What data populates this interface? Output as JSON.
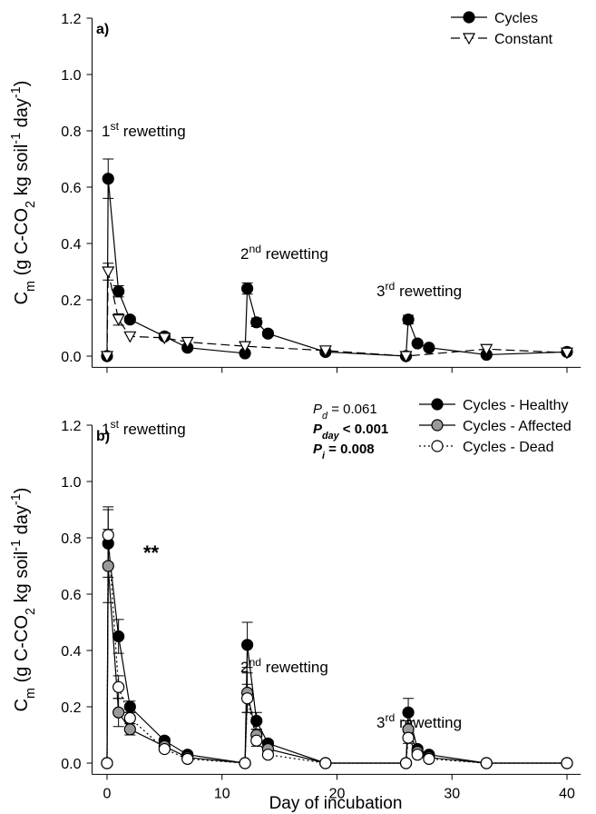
{
  "chart_data": [
    {
      "type": "line",
      "panel_label": "a)",
      "ylabel": [
        {
          "text": "C"
        },
        {
          "text": "m",
          "sub": true
        },
        {
          "text": " (g C-CO"
        },
        {
          "text": "2",
          "sub": true
        },
        {
          "text": " kg soil"
        },
        {
          "text": "-1",
          "sup": true
        },
        {
          "text": " day"
        },
        {
          "text": "-1",
          "sup": true
        },
        {
          "text": ")"
        }
      ],
      "xlim": [
        -1.3,
        41.2
      ],
      "xticks": [
        0,
        10,
        20,
        30,
        40
      ],
      "xtick_labels": false,
      "ylim": [
        -0.04,
        1.2
      ],
      "yticks": [
        {
          "value": 0.0,
          "label": "0.0"
        },
        0.2,
        0.4,
        0.6,
        0.8,
        {
          "value": 1.0,
          "label": "1.0"
        },
        1.2
      ],
      "legend": "upper right",
      "annotations": [
        [
          {
            "text": "1"
          },
          {
            "text": "st",
            "sup": true
          },
          {
            "text": " rewetting"
          }
        ],
        [
          {
            "text": "2"
          },
          {
            "text": "nd",
            "sup": true
          },
          {
            "text": " rewetting"
          }
        ],
        [
          {
            "text": "3"
          },
          {
            "text": "rd",
            "sup": true
          },
          {
            "text": " rewetting"
          }
        ]
      ],
      "series": [
        {
          "name": "Cycles",
          "color": "#000000",
          "marker": "circle",
          "marker_fill": "#000000",
          "line": "solid",
          "x": [
            0,
            0.1,
            1,
            2,
            5,
            7,
            12,
            12.2,
            13,
            14,
            19,
            26,
            26.2,
            27,
            28,
            33,
            40
          ],
          "values": [
            0,
            0.63,
            0.23,
            0.13,
            0.07,
            0.03,
            0.01,
            0.24,
            0.12,
            0.08,
            0.015,
            0.0,
            0.13,
            0.045,
            0.03,
            0.005,
            0.015
          ],
          "errors": [
            null,
            0.07,
            0.02,
            0.01,
            0.01,
            null,
            null,
            0.02,
            0.015,
            0.01,
            null,
            null,
            0.015,
            null,
            null,
            null,
            null
          ]
        },
        {
          "name": "Constant",
          "color": "#000000",
          "marker": "triangle-down",
          "marker_fill": "#ffffff",
          "line": "dashed",
          "x": [
            0,
            0.1,
            1,
            2,
            5,
            7,
            12,
            19,
            26,
            33,
            40
          ],
          "values": [
            0,
            0.3,
            0.13,
            0.07,
            0.065,
            0.05,
            0.035,
            0.02,
            0.0,
            0.025,
            0.012
          ],
          "errors": [
            null,
            0.03,
            0.02,
            null,
            null,
            null,
            null,
            null,
            null,
            null,
            null
          ]
        }
      ]
    },
    {
      "type": "line",
      "panel_label": "b)",
      "ylabel": [
        {
          "text": "C"
        },
        {
          "text": "m",
          "sub": true
        },
        {
          "text": " (g C-CO"
        },
        {
          "text": "2",
          "sub": true
        },
        {
          "text": " kg soil"
        },
        {
          "text": "-1",
          "sup": true
        },
        {
          "text": " day"
        },
        {
          "text": "-1",
          "sup": true
        },
        {
          "text": ")"
        }
      ],
      "xlabel": "Day of incubation",
      "xlim": [
        -1.3,
        41.2
      ],
      "xticks": [
        0,
        10,
        20,
        30,
        40
      ],
      "xtick_labels": true,
      "ylim": [
        -0.04,
        1.2
      ],
      "yticks": [
        {
          "value": 0.0,
          "label": "0.0"
        },
        0.2,
        0.4,
        0.6,
        0.8,
        {
          "value": 1.0,
          "label": "1.0"
        },
        1.2
      ],
      "legend": "upper right",
      "annotations": [
        [
          {
            "text": "1"
          },
          {
            "text": "st",
            "sup": true
          },
          {
            "text": " rewetting"
          }
        ],
        [
          {
            "text": "2"
          },
          {
            "text": "nd",
            "sup": true
          },
          {
            "text": " rewetting"
          }
        ],
        [
          {
            "text": "3"
          },
          {
            "text": "rd",
            "sup": true
          },
          {
            "text": " rewetting"
          }
        ],
        [
          {
            "text": "**",
            "bold": true
          }
        ]
      ],
      "stats": [
        [
          {
            "text": "P",
            "italic": true
          },
          {
            "text": "d",
            "sub": true,
            "italic": true
          },
          {
            "text": " = 0.061"
          }
        ],
        [
          {
            "text": "P",
            "italic": true,
            "bold": true
          },
          {
            "text": "day",
            "sub": true,
            "italic": true,
            "bold": true
          },
          {
            "text": " < 0.001",
            "bold": true
          }
        ],
        [
          {
            "text": "P",
            "italic": true,
            "bold": true
          },
          {
            "text": "i",
            "sub": true,
            "italic": true,
            "bold": true
          },
          {
            "text": " = 0.008",
            "bold": true
          }
        ]
      ],
      "series": [
        {
          "name": "Cycles - Healthy",
          "color": "#000000",
          "marker": "circle",
          "marker_fill": "#000000",
          "line": "solid",
          "x": [
            0,
            0.1,
            1,
            2,
            5,
            7,
            12,
            12.2,
            13,
            14,
            19,
            26,
            26.2,
            27,
            28,
            33,
            40
          ],
          "values": [
            0,
            0.78,
            0.45,
            0.2,
            0.08,
            0.03,
            0,
            0.42,
            0.15,
            0.07,
            0,
            0,
            0.18,
            0.05,
            0.03,
            0,
            0
          ],
          "errors": [
            null,
            0.12,
            0.06,
            0.02,
            0.01,
            null,
            null,
            0.08,
            0.03,
            0.01,
            null,
            null,
            0.05,
            0.01,
            null,
            null,
            null
          ]
        },
        {
          "name": "Cycles - Affected",
          "color": "#000000",
          "marker": "circle",
          "marker_fill": "#999999",
          "line": "solid",
          "x": [
            0,
            0.1,
            1,
            2,
            5,
            7,
            12,
            12.2,
            13,
            14,
            19,
            26,
            26.2,
            27,
            28,
            33,
            40
          ],
          "values": [
            0,
            0.7,
            0.18,
            0.12,
            0.06,
            0.02,
            0,
            0.25,
            0.1,
            0.05,
            0,
            0,
            0.12,
            0.04,
            0.02,
            0,
            0
          ],
          "errors": [
            null,
            0.13,
            0.05,
            0.02,
            0.01,
            null,
            null,
            0.07,
            0.02,
            0.01,
            null,
            null,
            0.03,
            null,
            null,
            null,
            null
          ]
        },
        {
          "name": "Cycles - Dead",
          "color": "#000000",
          "marker": "circle",
          "marker_fill": "#ffffff",
          "line": "dotted",
          "x": [
            0,
            0.1,
            1,
            2,
            5,
            7,
            12,
            12.2,
            13,
            14,
            19,
            26,
            26.2,
            27,
            28,
            33,
            40
          ],
          "values": [
            0,
            0.81,
            0.27,
            0.16,
            0.05,
            0.015,
            0,
            0.23,
            0.08,
            0.03,
            0,
            0,
            0.09,
            0.03,
            0.015,
            0,
            0
          ],
          "errors": [
            null,
            0.1,
            0.04,
            0.02,
            null,
            null,
            null,
            0.05,
            0.02,
            null,
            null,
            null,
            0.02,
            null,
            null,
            null,
            null
          ]
        }
      ]
    }
  ]
}
